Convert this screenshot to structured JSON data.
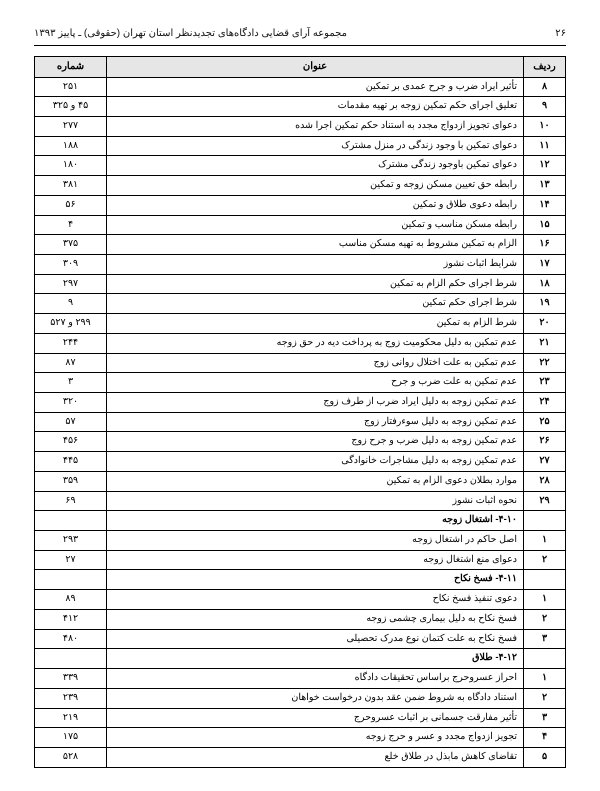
{
  "header": {
    "page_number": "۲۶",
    "title_line": "مجموعه آرای قضایی دادگاه‌های تجدیدنظر استان تهران (حقوقی) ـ پاییز ۱۳۹۳"
  },
  "columns": {
    "row": "ردیف",
    "title": "عنوان",
    "page": "شماره"
  },
  "rows": [
    {
      "n": "۸",
      "t": "تأثیر ایراد ضرب و جرح عمدی بر تمکین",
      "p": "۲۵۱"
    },
    {
      "n": "۹",
      "t": "تعلیق اجرای حکم تمکین زوجه بر تهیه مقدمات",
      "p": "۴۵ و ۳۲۵"
    },
    {
      "n": "۱۰",
      "t": "دعوای تجویز ازدواج مجدد به استناد حکم تمکین اجرا شده",
      "p": "۲۷۷"
    },
    {
      "n": "۱۱",
      "t": "دعوای تمکین با وجود زندگی در منزل مشترک",
      "p": "۱۸۸"
    },
    {
      "n": "۱۲",
      "t": "دعوای تمکین باوجود زندگی مشترک",
      "p": "۱۸۰"
    },
    {
      "n": "۱۳",
      "t": "رابطه حق تعیین مسکن زوجه و تمکین",
      "p": "۳۸۱"
    },
    {
      "n": "۱۴",
      "t": "رابطه دعوی طلاق و تمکین",
      "p": "۵۶"
    },
    {
      "n": "۱۵",
      "t": "رابطه مسکن مناسب و تمکین",
      "p": "۴"
    },
    {
      "n": "۱۶",
      "t": "الزام به تمکین مشروط به تهیه مسکن مناسب",
      "p": "۳۷۵"
    },
    {
      "n": "۱۷",
      "t": "شرایط اثبات نشوز",
      "p": "۳۰۹"
    },
    {
      "n": "۱۸",
      "t": "شرط اجرای حکم الزام به تمکین",
      "p": "۲۹۷"
    },
    {
      "n": "۱۹",
      "t": "شرط اجرای حکم تمکین",
      "p": "۹"
    },
    {
      "n": "۲۰",
      "t": "شرط الزام به تمکین",
      "p": "۲۹۹ و ۵۲۷"
    },
    {
      "n": "۲۱",
      "t": "عدم تمکین به دلیل محکومیت زوج به پرداخت دیه در حق زوجه",
      "p": "۲۴۴"
    },
    {
      "n": "۲۲",
      "t": "عدم تمکین به علت اختلال روانی زوج",
      "p": "۸۷"
    },
    {
      "n": "۲۳",
      "t": "عدم تمکین به علت ضرب و جرح",
      "p": "۳"
    },
    {
      "n": "۲۴",
      "t": "عدم تمکین زوجه به دلیل ایراد ضرب از طرف زوج",
      "p": "۳۲۰"
    },
    {
      "n": "۲۵",
      "t": "عدم تمکین زوجه به دلیل سوءرفتار زوج",
      "p": "۵۷"
    },
    {
      "n": "۲۶",
      "t": "عدم تمکین زوجه به دلیل ضرب و جرح زوج",
      "p": "۴۵۶"
    },
    {
      "n": "۲۷",
      "t": "عدم تمکین زوجه به دلیل مشاجرات خانوادگی",
      "p": "۴۴۵"
    },
    {
      "n": "۲۸",
      "t": "موارد بطلان دعوی الزام به تمکین",
      "p": "۳۵۹"
    },
    {
      "n": "۲۹",
      "t": "نحوه اثبات نشوز",
      "p": "۶۹"
    },
    {
      "section": true,
      "t": "۴-۱۰- اشتغال زوجه"
    },
    {
      "n": "۱",
      "t": "اصل حاکم در اشتغال زوجه",
      "p": "۲۹۳"
    },
    {
      "n": "۲",
      "t": "دعوای منع اشتغال زوجه",
      "p": "۲۷"
    },
    {
      "section": true,
      "t": "۴-۱۱- فسخ نکاح"
    },
    {
      "n": "۱",
      "t": "دعوی تنفیذ فسخ نکاح",
      "p": "۸۹"
    },
    {
      "n": "۲",
      "t": "فسخ نکاح به دلیل بیماری چشمی زوجه",
      "p": "۴۱۲"
    },
    {
      "n": "۳",
      "t": "فسخ نکاح به علت کتمان نوع مدرک تحصیلی",
      "p": "۴۸۰"
    },
    {
      "section": true,
      "t": "۴-۱۲- طلاق"
    },
    {
      "n": "۱",
      "t": "احراز عسروحرج براساس تحقیقات دادگاه",
      "p": "۳۳۹"
    },
    {
      "n": "۲",
      "t": "استناد دادگاه به شروط ضمن عقد بدون درخواست خواهان",
      "p": "۲۳۹"
    },
    {
      "n": "۳",
      "t": "تأثیر مفارقت جسمانی بر اثبات عسروحرج",
      "p": "۲۱۹"
    },
    {
      "n": "۴",
      "t": "تجویز ازدواج مجدد و عسر و حرج زوجه",
      "p": "۱۷۵"
    },
    {
      "n": "۵",
      "t": "تقاضای کاهش مابذل در طلاق خلع",
      "p": "۵۲۸"
    }
  ],
  "style": {
    "header_bg": "#e6e6e6",
    "border_color": "#000000",
    "font_size_cell": 9.5,
    "font_size_header": 10
  }
}
